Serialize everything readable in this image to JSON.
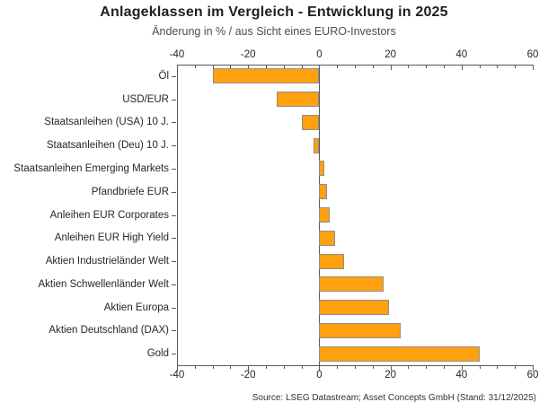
{
  "chart_data": {
    "type": "bar",
    "orientation": "horizontal",
    "title": "Anlageklassen im Vergleich - Entwicklung in 2025",
    "subtitle": "Änderung in % / aus Sicht eines EURO-Investors",
    "categories": [
      "Öl",
      "USD/EUR",
      "Staatsanleihen (USA) 10 J.",
      "Staatsanleihen (Deu) 10 J.",
      "Staatsanleihen Emerging Markets",
      "Pfandbriefe EUR",
      "Anleihen EUR Corporates",
      "Anleihen EUR High Yield",
      "Aktien Industrieländer Welt",
      "Aktien Schwellenländer Welt",
      "Aktien Europa",
      "Aktien Deutschland (DAX)",
      "Gold"
    ],
    "values": [
      -30,
      -12,
      -5,
      -1.5,
      1.3,
      2.2,
      3,
      4.5,
      7,
      18,
      19.5,
      23,
      45
    ],
    "xlabel": "",
    "ylabel": "",
    "xlim": [
      -40,
      60
    ],
    "x_major_ticks": [
      -40,
      -20,
      0,
      20,
      40,
      60
    ],
    "x_minor_step": 5,
    "grid": "off",
    "legend": "none",
    "bar_color": "#FFA00F",
    "bar_border_color": "#8f8f8f",
    "axis_color": "#595959",
    "source": "Source: LSEG Datastream; Asset Concepts GmbH (Stand: 31/12/2025)"
  }
}
